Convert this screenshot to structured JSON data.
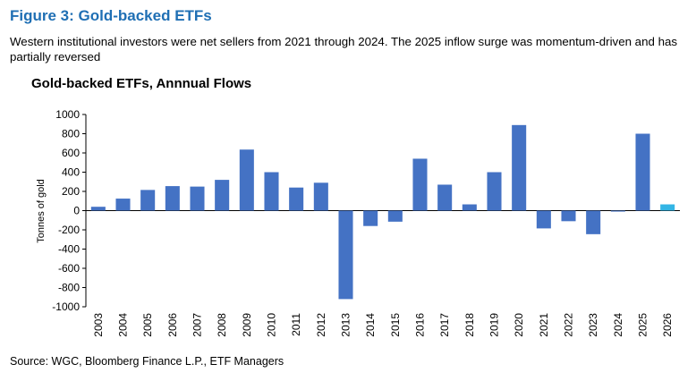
{
  "figure": {
    "title": "Figure 3: Gold-backed ETFs",
    "subtitle": "Western institutional investors were net sellers from 2021 through 2024. The 2025 inflow surge was momentum-driven and has partially reversed",
    "source": "Source: WGC, Bloomberg Finance L.P., ETF Managers"
  },
  "colors": {
    "bar": "#4472c4",
    "highlight_bar": "#33b5e5",
    "title": "#1f6fb4"
  },
  "chart_data": {
    "type": "bar",
    "title": "Gold-backed ETFs, Annnual Flows",
    "xlabel": "",
    "ylabel": "Tonnes of gold",
    "ylim": [
      -1000,
      1000
    ],
    "yticks": [
      -1000,
      -800,
      -600,
      -400,
      -200,
      0,
      200,
      400,
      600,
      800,
      1000
    ],
    "grid": false,
    "categories": [
      "2003",
      "2004",
      "2005",
      "2006",
      "2007",
      "2008",
      "2009",
      "2010",
      "2011",
      "2012",
      "2013",
      "2014",
      "2015",
      "2016",
      "2017",
      "2018",
      "2019",
      "2020",
      "2021",
      "2022",
      "2023",
      "2024",
      "2025",
      "2026"
    ],
    "values": [
      40,
      125,
      215,
      255,
      250,
      320,
      635,
      400,
      240,
      290,
      -920,
      -160,
      -115,
      540,
      270,
      65,
      400,
      890,
      -185,
      -110,
      -245,
      -10,
      800,
      65
    ],
    "highlight_index": 23
  }
}
